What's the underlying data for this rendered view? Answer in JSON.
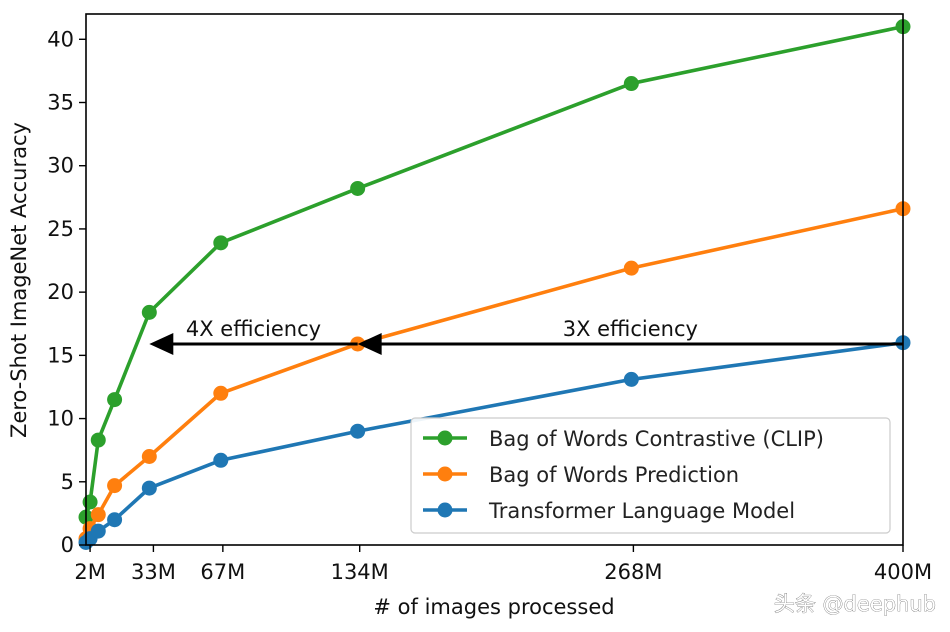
{
  "chart_data": {
    "type": "line",
    "title": "",
    "xlabel": "# of images processed",
    "ylabel": "Zero-Shot ImageNet Accuracy",
    "xlim": [
      0,
      400
    ],
    "ylim": [
      0,
      42
    ],
    "x_ticks": [
      {
        "value": 2,
        "label": "2M"
      },
      {
        "value": 33,
        "label": "33M"
      },
      {
        "value": 67,
        "label": "67M"
      },
      {
        "value": 134,
        "label": "134M"
      },
      {
        "value": 268,
        "label": "268M"
      },
      {
        "value": 400,
        "label": "400M"
      }
    ],
    "y_ticks": [
      0,
      5,
      10,
      15,
      20,
      25,
      30,
      35,
      40
    ],
    "grid": false,
    "legend_position": "bottom-right",
    "series": [
      {
        "name": "Bag of Words Contrastive (CLIP)",
        "color": "#2ca02c",
        "x": [
          0,
          2,
          6,
          14,
          31,
          66,
          133,
          267,
          400
        ],
        "values": [
          2.2,
          3.4,
          8.3,
          11.5,
          18.4,
          23.9,
          28.2,
          36.5,
          41.0
        ]
      },
      {
        "name": "Bag of Words Prediction",
        "color": "#ff7f0e",
        "x": [
          0,
          2,
          6,
          14,
          31,
          66,
          133,
          267,
          400
        ],
        "values": [
          0.5,
          1.3,
          2.4,
          4.7,
          7.0,
          12.0,
          15.9,
          21.9,
          26.6
        ]
      },
      {
        "name": "Transformer Language Model",
        "color": "#1f77b4",
        "x": [
          0,
          2,
          6,
          14,
          31,
          66,
          133,
          267,
          400
        ],
        "values": [
          0.2,
          0.5,
          1.1,
          2.0,
          4.5,
          6.7,
          9.0,
          13.1,
          16.0
        ]
      }
    ],
    "annotations": [
      {
        "text": "4X efficiency",
        "arrow_from_x": 133,
        "arrow_to_x": 31,
        "y": 15.9
      },
      {
        "text": "3X efficiency",
        "arrow_from_x": 400,
        "arrow_to_x": 133,
        "y": 15.9
      }
    ],
    "watermark": "头条 @deephub"
  }
}
